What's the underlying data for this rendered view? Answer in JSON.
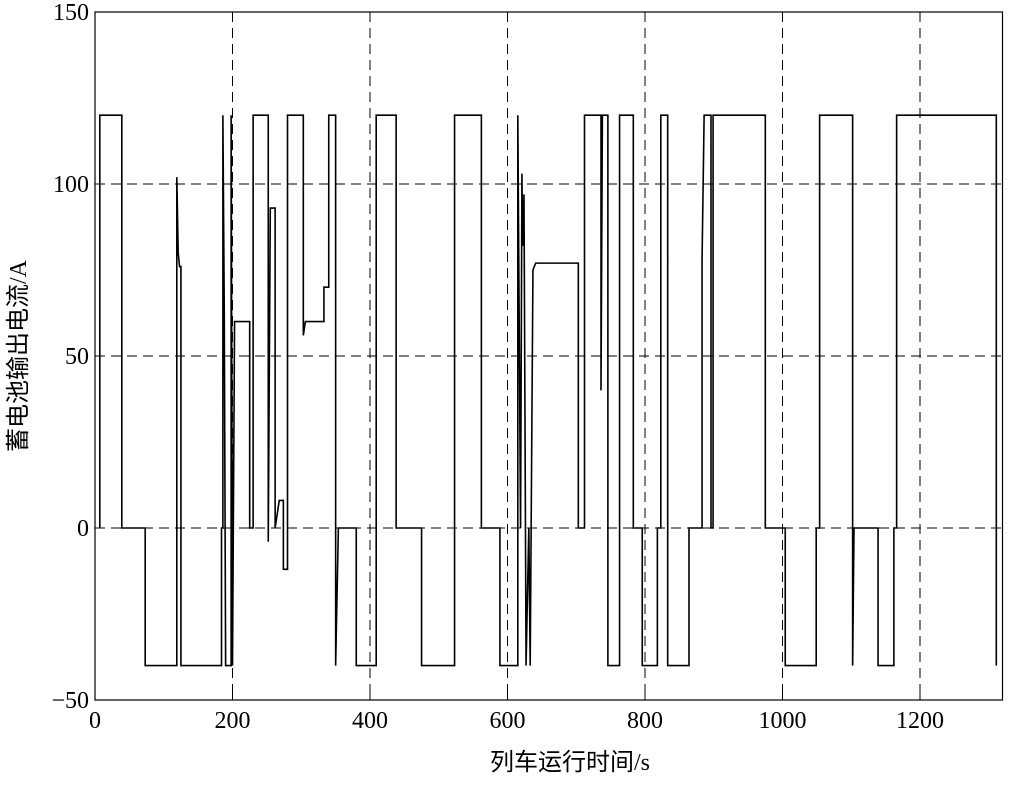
{
  "chart_data": {
    "type": "line",
    "xlabel": "列车运行时间/s",
    "ylabel": "蓄电池输出电流/A",
    "color": "#000000",
    "grid": true,
    "xlim": [
      0,
      1320
    ],
    "ylim": [
      -50,
      150
    ],
    "xticks": [
      0,
      200,
      400,
      600,
      800,
      1000,
      1200
    ],
    "yticks": [
      {
        "value": -50,
        "label": "−50"
      },
      0,
      50,
      100,
      150
    ],
    "x": [
      7,
      7,
      39,
      39,
      73,
      73,
      119,
      119,
      121,
      123,
      125,
      125,
      184,
      184,
      186,
      186,
      188,
      190,
      198,
      198,
      200,
      203,
      225,
      225,
      230,
      230,
      252,
      252,
      255,
      262,
      262,
      268,
      274,
      274,
      280,
      280,
      303,
      303,
      306,
      333,
      333,
      340,
      340,
      350,
      350,
      354,
      380,
      380,
      409,
      409,
      438,
      438,
      475,
      475,
      523,
      523,
      562,
      562,
      589,
      589,
      615,
      615,
      619,
      621,
      622,
      624,
      627,
      631,
      633,
      637,
      641,
      703,
      703,
      712,
      712,
      736,
      736,
      738,
      746,
      746,
      763,
      763,
      783,
      783,
      796,
      796,
      818,
      818,
      823,
      823,
      833,
      833,
      864,
      864,
      883,
      883,
      886,
      896,
      896,
      899,
      899,
      975,
      975,
      1004,
      1004,
      1049,
      1049,
      1054,
      1054,
      1102,
      1102,
      1104,
      1139,
      1139,
      1162,
      1162,
      1166,
      1166,
      1311,
      1311
    ],
    "values": [
      0,
      120,
      120,
      0,
      0,
      -40,
      -40,
      102,
      80,
      76,
      76,
      -40,
      -40,
      0,
      0,
      120,
      64,
      -40,
      -40,
      120,
      -40,
      60,
      60,
      0,
      0,
      120,
      120,
      -4,
      93,
      93,
      0,
      8,
      8,
      -12,
      -12,
      120,
      120,
      56,
      60,
      60,
      70,
      70,
      120,
      120,
      -40,
      0,
      0,
      -40,
      -40,
      120,
      120,
      0,
      0,
      -40,
      -40,
      120,
      120,
      0,
      0,
      -40,
      -40,
      120,
      0,
      103,
      82,
      97,
      -40,
      0,
      -40,
      75,
      77,
      77,
      0,
      0,
      120,
      120,
      40,
      120,
      120,
      -40,
      -40,
      120,
      120,
      0,
      0,
      -40,
      -40,
      0,
      0,
      120,
      120,
      -40,
      -40,
      0,
      0,
      78,
      120,
      120,
      0,
      0,
      120,
      120,
      0,
      0,
      -40,
      -40,
      0,
      0,
      120,
      120,
      -40,
      0,
      0,
      -40,
      -40,
      0,
      0,
      120,
      120,
      -40
    ]
  }
}
